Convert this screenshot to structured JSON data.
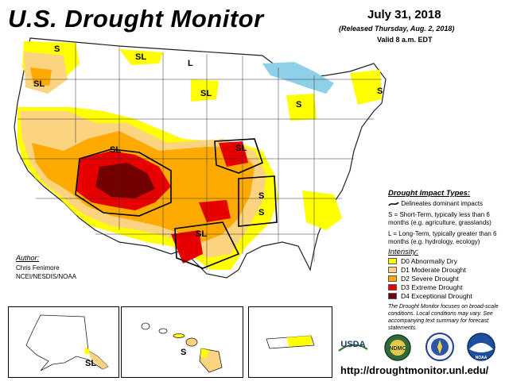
{
  "header": {
    "title": "U.S. Drought Monitor",
    "date": "July 31, 2018",
    "released": "(Released Thursday, Aug. 2, 2018)",
    "valid": "Valid 8 a.m. EDT"
  },
  "impact_types": {
    "title": "Drought Impact Types:",
    "boundary_label": "Delineates dominant impacts",
    "short_term": "S = Short-Term, typically less than 6 months (e.g. agriculture, grasslands)",
    "long_term": "L = Long-Term, typically greater than 6 months (e.g. hydrology, ecology)"
  },
  "intensity": {
    "title": "Intensity:",
    "levels": [
      {
        "label": "D0 Abnormally Dry",
        "color": "#FFFF00"
      },
      {
        "label": "D1 Moderate Drought",
        "color": "#FCD37F"
      },
      {
        "label": "D2 Severe Drought",
        "color": "#FFAA00"
      },
      {
        "label": "D3 Extreme Drought",
        "color": "#E60000"
      },
      {
        "label": "D4 Exceptional Drought",
        "color": "#730000"
      }
    ]
  },
  "note": "The Drought Monitor focuses on broad-scale conditions. Local conditions may vary. See accompanying text summary for forecast statements.",
  "author": {
    "label": "Author:",
    "name": "Chris Fenimore",
    "org": "NCEI/NESDIS/NOAA"
  },
  "map_labels": [
    {
      "text": "S",
      "id": "pacific-nw-s"
    },
    {
      "text": "SL",
      "id": "montana-sl"
    },
    {
      "text": "L",
      "id": "montana-l"
    },
    {
      "text": "SL",
      "id": "oregon-sl"
    },
    {
      "text": "SL",
      "id": "dakotas-sl"
    },
    {
      "text": "S",
      "id": "michigan-s"
    },
    {
      "text": "S",
      "id": "new-england-s"
    },
    {
      "text": "SL",
      "id": "four-corners-sl"
    },
    {
      "text": "SL",
      "id": "kansas-sl"
    },
    {
      "text": "S",
      "id": "missouri-s"
    },
    {
      "text": "S",
      "id": "arkansas-s"
    },
    {
      "text": "SL",
      "id": "texas-sl"
    },
    {
      "text": "SL",
      "id": "alaska-sl"
    },
    {
      "text": "S",
      "id": "hawaii-s"
    }
  ],
  "logos": {
    "usda": "USDA",
    "ndmc": "NDMC",
    "commerce": "COMMERCE",
    "noaa": "NOAA"
  },
  "url": "http://droughtmonitor.unl.edu/"
}
